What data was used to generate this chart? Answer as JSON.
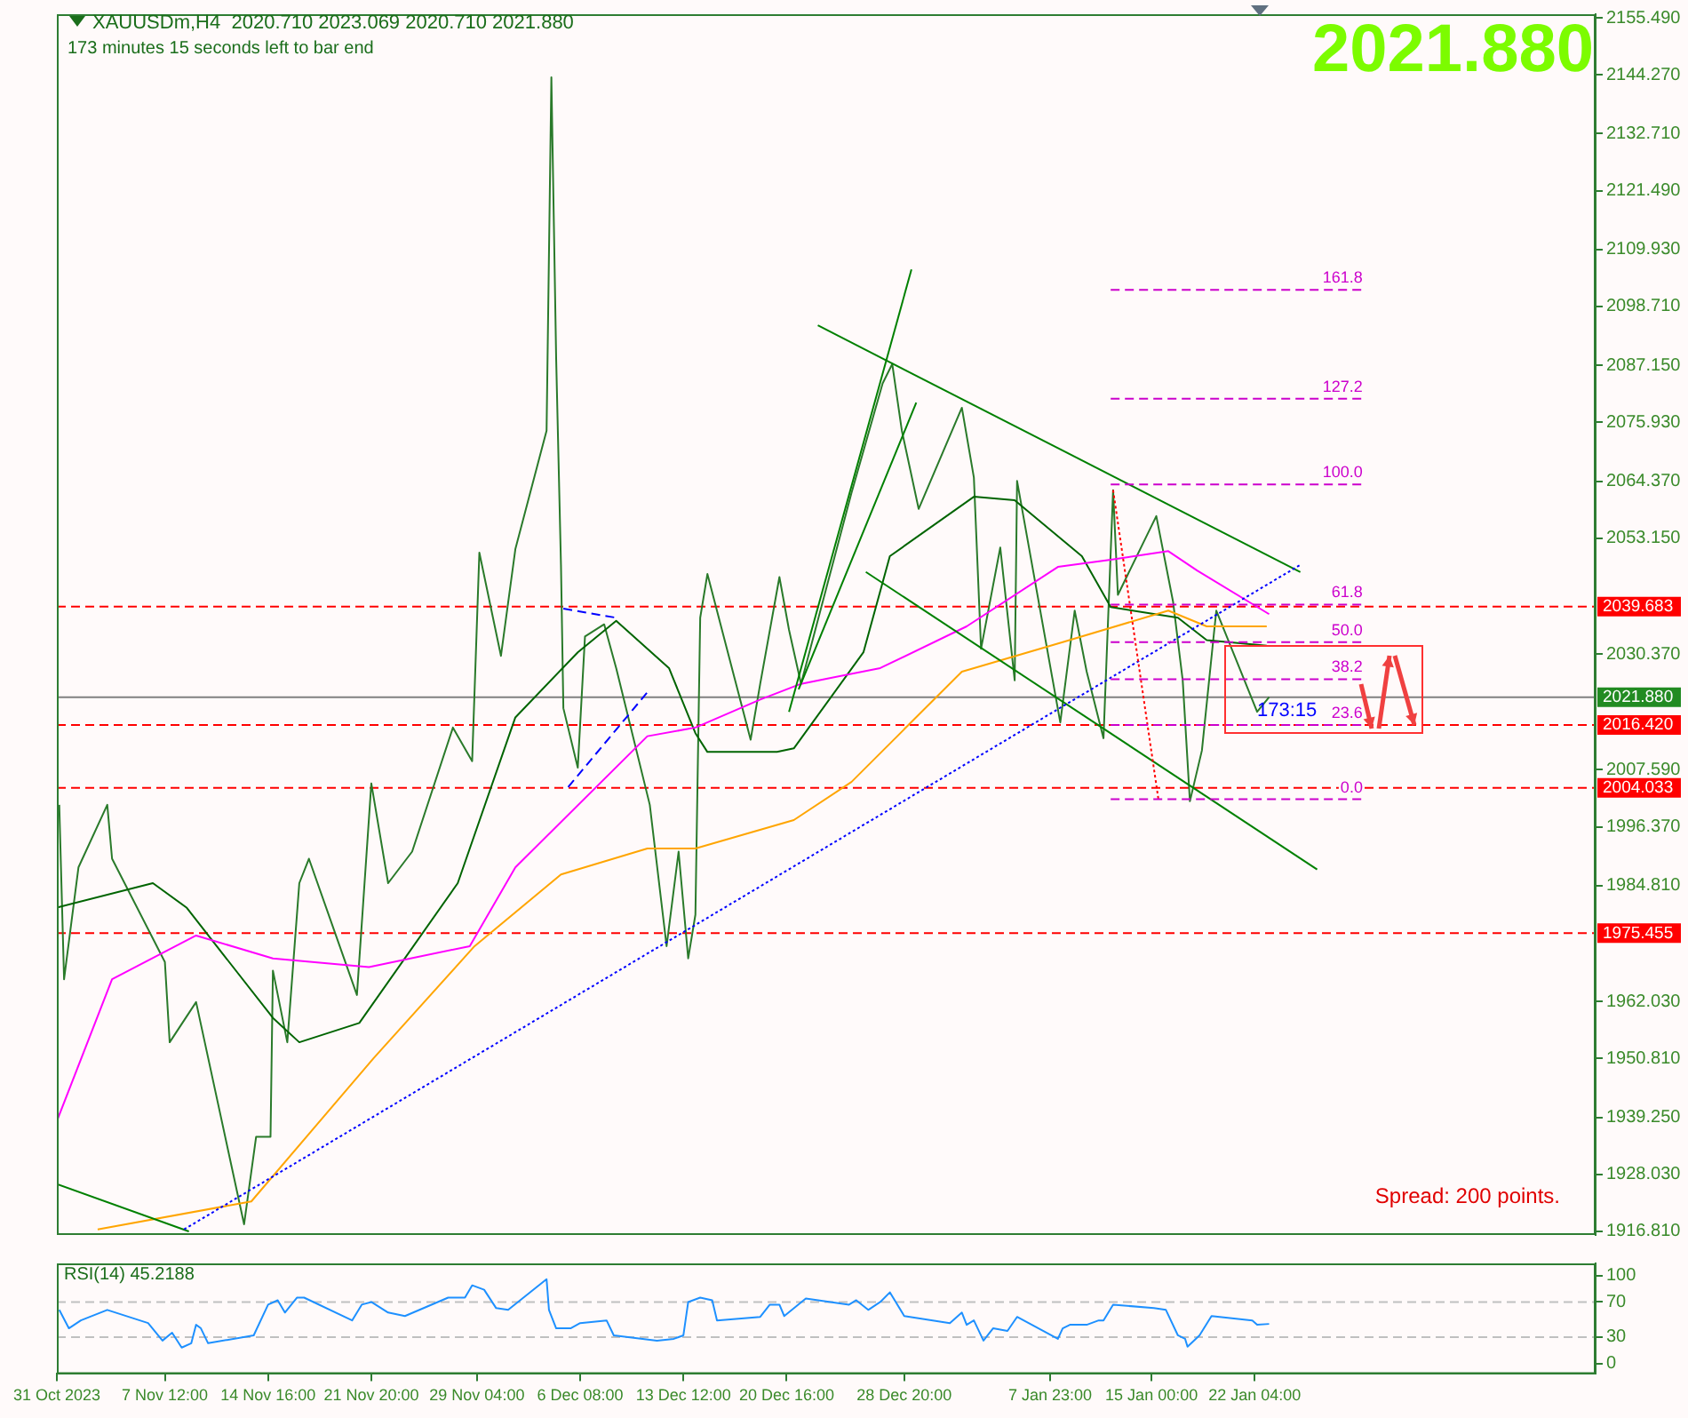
{
  "chart_data": [
    {
      "type": "line",
      "annotations": [
        "XAUUSDm,H4  2020.710 2023.069 2020.710 2021.880",
        "173 minutes 15 seconds left to bar end",
        "2021.880",
        "Spread: 200 points.",
        {
          "text": "173:15",
          "x": "2024-01-22T08:00",
          "y": 2021.9
        }
      ],
      "xlim": [
        "2023-10-31T00:00",
        "2024-02-14T20:00"
      ],
      "ylim": [
        1916.1,
        2156.2
      ],
      "yticks": [
        {
          "value": 2155.49,
          "label": "2155.490"
        },
        {
          "value": 2144.27,
          "label": "2144.270"
        },
        {
          "value": 2132.71,
          "label": "2132.710"
        },
        {
          "value": 2121.49,
          "label": "2121.490"
        },
        {
          "value": 2109.93,
          "label": "2109.930"
        },
        {
          "value": 2098.71,
          "label": "2098.710"
        },
        {
          "value": 2087.15,
          "label": "2087.150"
        },
        {
          "value": 2075.93,
          "label": "2075.930"
        },
        {
          "value": 2064.37,
          "label": "2064.370"
        },
        {
          "value": 2053.15,
          "label": "2053.150"
        },
        {
          "value": 2030.37,
          "label": "2030.370"
        },
        {
          "value": 2007.59,
          "label": "2007.590"
        },
        {
          "value": 1996.37,
          "label": "1996.370"
        },
        {
          "value": 1984.81,
          "label": "1984.810"
        },
        {
          "value": 1962.03,
          "label": "1962.030"
        },
        {
          "value": 1950.81,
          "label": "1950.810"
        },
        {
          "value": 1939.25,
          "label": "1939.250"
        },
        {
          "value": 1928.03,
          "label": "1928.030"
        },
        {
          "value": 1916.81,
          "label": "1916.810"
        }
      ],
      "tick_labels": "y",
      "grid": false,
      "legend": false,
      "marker": "none",
      "ref_lines": [
        {
          "axis": "y",
          "value": 2039.683,
          "label": "2039.683",
          "color": "#ff0000",
          "line_style": "dashed"
        },
        {
          "axis": "y",
          "value": 2021.88,
          "label": "2021.880",
          "color": "#808080",
          "line_style": "solid"
        },
        {
          "axis": "y",
          "value": 2016.42,
          "label": "2016.420",
          "color": "#ff0000",
          "line_style": "dashed"
        },
        {
          "axis": "y",
          "value": 2004.033,
          "label": "2004.033",
          "color": "#ff0000",
          "line_style": "dashed"
        },
        {
          "axis": "y",
          "value": 1975.455,
          "label": "1975.455",
          "color": "#ff0000",
          "line_style": "dashed"
        }
      ],
      "series": [
        {
          "color": "#2a7a2a",
          "x": [
            "2023-10-31T04:00",
            "2023-10-31T12:00",
            "2023-11-01T12:00",
            "2023-11-03T12:00",
            "2023-11-03T20:00",
            "2023-11-07T12:00",
            "2023-11-07T20:00",
            "2023-11-09T16:00",
            "2023-11-13T00:00",
            "2023-11-13T20:00",
            "2023-11-14T20:00",
            "2023-11-15T00:00",
            "2023-11-16T00:00",
            "2023-11-16T20:00",
            "2023-11-17T12:00",
            "2023-11-20T20:00",
            "2023-11-21T20:00",
            "2023-11-23T00:00",
            "2023-11-24T16:00",
            "2023-11-27T12:00",
            "2023-11-28T20:00",
            "2023-11-29T08:00",
            "2023-11-30T20:00",
            "2023-12-01T20:00",
            "2023-12-04T00:00",
            "2023-12-04T08:00",
            "2023-12-04T16:00",
            "2023-12-05T00:00",
            "2023-12-05T04:00",
            "2023-12-06T04:00",
            "2023-12-06T16:00",
            "2023-12-08T00:00",
            "2023-12-08T20:00",
            "2023-12-11T04:00",
            "2023-12-12T08:00",
            "2023-12-13T04:00",
            "2023-12-13T20:00",
            "2023-12-14T08:00",
            "2023-12-14T16:00",
            "2023-12-15T04:00",
            "2023-12-18T04:00",
            "2023-12-18T20:00",
            "2023-12-20T04:00",
            "2023-12-20T20:00",
            "2023-12-21T16:00",
            "2023-12-25T04:00",
            "2023-12-27T08:00",
            "2023-12-28T00:00",
            "2023-12-28T16:00",
            "2023-12-29T20:00",
            "2024-01-01T20:00",
            "2024-01-02T16:00",
            "2024-01-03T04:00",
            "2024-01-04T12:00",
            "2024-01-05T12:00",
            "2024-01-05T16:00",
            "2024-01-08T16:00",
            "2024-01-09T16:00",
            "2024-01-10T12:00",
            "2024-01-11T16:00",
            "2024-01-12T08:00",
            "2024-01-12T16:00",
            "2024-01-15T08:00",
            "2024-01-16T12:00",
            "2024-01-17T04:00",
            "2024-01-17T16:00",
            "2024-01-18T12:00",
            "2024-01-19T08:00",
            "2024-01-19T12:00",
            "2024-01-22T08:00",
            "2024-01-23T04:00"
          ],
          "values": [
            2000.7,
            1966.4,
            1988.4,
            2000.7,
            1990.1,
            1969.8,
            1954.0,
            1961.9,
            1918.2,
            1935.4,
            1935.4,
            1968.1,
            1954.0,
            1985.3,
            1990.1,
            1963.3,
            2004.9,
            1985.3,
            1991.5,
            2015.9,
            2009.3,
            2050.3,
            2030.0,
            2051.0,
            2074.3,
            2143.8,
            2088.4,
            2047.9,
            2019.7,
            2008.0,
            2033.8,
            2036.2,
            2027.6,
            2000.7,
            1972.9,
            1991.5,
            1970.5,
            1979.1,
            2037.5,
            2046.1,
            2013.5,
            2024.5,
            2045.5,
            2035.1,
            2024.5,
            2062.0,
            2083.6,
            2087.4,
            2074.3,
            2058.9,
            2078.8,
            2065.1,
            2031.4,
            2051.3,
            2025.2,
            2064.4,
            2016.9,
            2038.9,
            2026.9,
            2013.8,
            2062.6,
            2042.0,
            2057.5,
            2040.6,
            2025.2,
            2001.4,
            2011.4,
            2034.4,
            2038.9,
            2019.0,
            2021.9
          ]
        },
        {
          "color": "#006400",
          "x": [
            "2023-10-31T00:00",
            "2023-11-06T16:00",
            "2023-11-09T00:00",
            "2023-11-15T00:00",
            "2023-11-16T20:00",
            "2023-11-21T00:00",
            "2023-11-27T20:00",
            "2023-12-01T20:00",
            "2023-12-06T04:00",
            "2023-12-08T20:00",
            "2023-12-12T12:00",
            "2023-12-14T08:00",
            "2023-12-15T04:00",
            "2023-12-20T00:00",
            "2023-12-21T04:00",
            "2023-12-26T00:00",
            "2023-12-27T20:00",
            "2024-01-02T16:00",
            "2024-01-05T12:00",
            "2024-01-10T04:00",
            "2024-01-12T04:00",
            "2024-01-16T20:00",
            "2024-01-18T20:00",
            "2024-01-23T00:00"
          ],
          "values": [
            1980.5,
            1985.3,
            1980.5,
            1958.8,
            1954.0,
            1957.8,
            1985.3,
            2017.9,
            2030.7,
            2036.9,
            2027.6,
            2014.8,
            2011.1,
            2011.1,
            2011.8,
            2030.7,
            2049.6,
            2061.3,
            2060.6,
            2049.6,
            2039.6,
            2037.5,
            2033.1,
            2032.0
          ]
        },
        {
          "color": "#ff00ff",
          "x": [
            "2023-10-31T00:00",
            "2023-11-03T20:00",
            "2023-11-09T16:00",
            "2023-11-15T00:00",
            "2023-11-21T16:00",
            "2023-11-28T16:00",
            "2023-12-01T20:00",
            "2023-12-11T00:00",
            "2023-12-14T08:00",
            "2023-12-18T20:00",
            "2023-12-21T16:00",
            "2023-12-27T04:00",
            "2024-01-02T04:00",
            "2024-01-08T12:00",
            "2024-01-12T04:00",
            "2024-01-16T04:00",
            "2024-01-18T04:00",
            "2024-01-23T04:00"
          ],
          "values": [
            1938.5,
            1966.4,
            1975.0,
            1970.5,
            1968.8,
            1972.9,
            1988.4,
            2014.2,
            2015.9,
            2021.4,
            2024.5,
            2027.6,
            2035.8,
            2047.5,
            2048.9,
            2050.6,
            2046.8,
            2038.2
          ]
        },
        {
          "color": "#ffa500",
          "x": [
            "2023-11-02T20:00",
            "2023-11-13T12:00",
            "2023-11-22T00:00",
            "2023-11-29T00:00",
            "2023-12-05T00:00",
            "2023-12-11T00:00",
            "2023-12-14T08:00",
            "2023-12-21T04:00",
            "2023-12-25T04:00",
            "2024-01-01T20:00",
            "2024-01-08T20:00",
            "2024-01-16T04:00",
            "2024-01-18T20:00",
            "2024-01-23T00:00"
          ],
          "values": [
            1917.2,
            1922.7,
            1950.9,
            1972.9,
            1987.0,
            1992.1,
            1992.1,
            1997.7,
            2005.2,
            2026.9,
            2032.7,
            2038.9,
            2035.8,
            2035.8
          ]
        },
        {
          "color": "#008000",
          "x": [
            "2023-12-22T20:00",
            "2024-01-25T08:00"
          ],
          "values": [
            2095.0,
            2046.5
          ]
        },
        {
          "color": "#008000",
          "x": [
            "2023-12-26T04:00",
            "2024-01-26T12:00"
          ],
          "values": [
            2046.5,
            1988.0
          ]
        },
        {
          "color": "#008000",
          "x": [
            "2023-12-20T20:00",
            "2023-12-29T08:00"
          ],
          "values": [
            2019.0,
            2106.0
          ]
        },
        {
          "color": "#008000",
          "x": [
            "2023-12-21T12:00",
            "2023-12-29T16:00"
          ],
          "values": [
            2023.4,
            2079.8
          ]
        },
        {
          "color": "#008000",
          "x": [
            "2023-10-31T00:00",
            "2023-11-09T04:00"
          ],
          "values": [
            1926.1,
            1916.8
          ]
        },
        {
          "color": "#0000ff",
          "line_style": "dotted",
          "x": [
            "2023-11-08T20:00",
            "2024-01-25T08:00"
          ],
          "values": [
            1917.2,
            2047.9
          ]
        },
        {
          "color": "#0000ff",
          "line_style": "dashed",
          "x": [
            "2023-12-05T12:00",
            "2023-12-11T04:00"
          ],
          "values": [
            2004.2,
            2023.4
          ]
        },
        {
          "color": "#0000ff",
          "line_style": "dashed",
          "x": [
            "2023-12-05T04:00",
            "2023-12-08T20:00"
          ],
          "values": [
            2039.3,
            2037.5
          ]
        },
        {
          "color": "#ff0000",
          "line_style": "dotted",
          "x": [
            "2024-01-12T08:00",
            "2024-01-15T12:00"
          ],
          "values": [
            2062.6,
            2001.4
          ]
        },
        {
          "name": "161.8",
          "color": "#cc00cc",
          "line_style": "dashed",
          "x": [
            "2024-01-12T04:00",
            "2024-01-29T16:00"
          ],
          "values": [
            2102.0,
            2102.0
          ]
        },
        {
          "name": "127.2",
          "color": "#cc00cc",
          "line_style": "dashed",
          "x": [
            "2024-01-12T04:00",
            "2024-01-29T16:00"
          ],
          "values": [
            2080.6,
            2080.6
          ]
        },
        {
          "name": "100.0",
          "color": "#cc00cc",
          "line_style": "dashed",
          "x": [
            "2024-01-12T04:00",
            "2024-01-29T16:00"
          ],
          "values": [
            2063.7,
            2063.7
          ]
        },
        {
          "name": "61.8",
          "color": "#cc00cc",
          "line_style": "dashed",
          "x": [
            "2024-01-12T04:00",
            "2024-01-29T16:00"
          ],
          "values": [
            2040.1,
            2040.1
          ]
        },
        {
          "name": "50.0",
          "color": "#cc00cc",
          "line_style": "dashed",
          "x": [
            "2024-01-12T04:00",
            "2024-01-29T16:00"
          ],
          "values": [
            2032.7,
            2032.7
          ]
        },
        {
          "name": "38.2",
          "color": "#cc00cc",
          "line_style": "dashed",
          "x": [
            "2024-01-12T04:00",
            "2024-01-29T16:00"
          ],
          "values": [
            2025.4,
            2025.4
          ]
        },
        {
          "name": "23.6",
          "color": "#cc00cc",
          "line_style": "dashed",
          "x": [
            "2024-01-12T04:00",
            "2024-01-29T16:00"
          ],
          "values": [
            2016.4,
            2016.4
          ]
        },
        {
          "name": "0.0",
          "color": "#cc00cc",
          "line_style": "dashed",
          "x": [
            "2024-01-12T04:00",
            "2024-01-29T16:00"
          ],
          "values": [
            2001.8,
            2001.8
          ]
        }
      ]
    },
    {
      "type": "line",
      "annotations": [
        "RSI(14) 45.2188"
      ],
      "xlim": [
        "2023-10-31T00:00",
        "2024-02-14T20:00"
      ],
      "xticks": [
        {
          "value": "2023-10-31T00:00",
          "label": "31 Oct 2023"
        },
        {
          "value": "2023-11-07T12:00",
          "label": "7 Nov 12:00"
        },
        {
          "value": "2023-11-14T16:00",
          "label": "14 Nov 16:00"
        },
        {
          "value": "2023-11-21T20:00",
          "label": "21 Nov 20:00"
        },
        {
          "value": "2023-11-29T04:00",
          "label": "29 Nov 04:00"
        },
        {
          "value": "2023-12-06T08:00",
          "label": "6 Dec 08:00"
        },
        {
          "value": "2023-12-13T12:00",
          "label": "13 Dec 12:00"
        },
        {
          "value": "2023-12-20T16:00",
          "label": "20 Dec 16:00"
        },
        {
          "value": "2023-12-28T20:00",
          "label": "28 Dec 20:00"
        },
        {
          "value": "2024-01-07T23:00",
          "label": "7 Jan 23:00"
        },
        {
          "value": "2024-01-15T00:00",
          "label": "15 Jan 00:00"
        },
        {
          "value": "2024-01-22T04:00",
          "label": "22 Jan 04:00"
        }
      ],
      "ylim": [
        -12,
        114
      ],
      "yticks": [
        100,
        70,
        30,
        0
      ],
      "grid": false,
      "legend": false,
      "marker": "none",
      "ref_lines": [
        {
          "axis": "y",
          "value": 70,
          "color": "#c0c0c0",
          "line_style": "dashed"
        },
        {
          "axis": "y",
          "value": 30,
          "color": "#c0c0c0",
          "line_style": "dashed"
        }
      ],
      "series": [
        {
          "color": "#1e90ff",
          "x": [
            "2023-10-31T04:00",
            "2023-10-31T20:00",
            "2023-11-01T16:00",
            "2023-11-03T12:00",
            "2023-11-06T08:00",
            "2023-11-07T08:00",
            "2023-11-08T00:00",
            "2023-11-08T16:00",
            "2023-11-09T08:00",
            "2023-11-09T16:00",
            "2023-11-10T00:00",
            "2023-11-10T12:00",
            "2023-11-13T16:00",
            "2023-11-14T16:00",
            "2023-11-15T08:00",
            "2023-11-15T20:00",
            "2023-11-16T16:00",
            "2023-11-17T04:00",
            "2023-11-20T12:00",
            "2023-11-21T04:00",
            "2023-11-21T20:00",
            "2023-11-23T00:00",
            "2023-11-24T04:00",
            "2023-11-27T04:00",
            "2023-11-28T08:00",
            "2023-11-28T20:00",
            "2023-11-29T16:00",
            "2023-11-30T12:00",
            "2023-12-01T08:00",
            "2023-12-04T00:00",
            "2023-12-04T04:00",
            "2023-12-04T16:00",
            "2023-12-05T16:00",
            "2023-12-06T08:00",
            "2023-12-08T04:00",
            "2023-12-08T16:00",
            "2023-12-11T16:00",
            "2023-12-12T20:00",
            "2023-12-13T12:00",
            "2023-12-13T20:00",
            "2023-12-14T16:00",
            "2023-12-15T12:00",
            "2023-12-15T20:00",
            "2023-12-18T20:00",
            "2023-12-19T12:00",
            "2023-12-20T04:00",
            "2023-12-20T12:00",
            "2023-12-22T00:00",
            "2023-12-25T00:00",
            "2023-12-25T12:00",
            "2023-12-26T08:00",
            "2023-12-27T04:00",
            "2023-12-27T20:00",
            "2023-12-28T20:00",
            "2024-01-01T00:00",
            "2024-01-01T20:00",
            "2024-01-02T04:00",
            "2024-01-02T16:00",
            "2024-01-03T08:00",
            "2024-01-04T00:00",
            "2024-01-05T00:00",
            "2024-01-05T16:00",
            "2024-01-08T12:00",
            "2024-01-08T20:00",
            "2024-01-09T08:00",
            "2024-01-10T12:00",
            "2024-01-11T08:00",
            "2024-01-11T16:00",
            "2024-01-12T08:00",
            "2024-01-15T04:00",
            "2024-01-16T00:00",
            "2024-01-16T20:00",
            "2024-01-17T08:00",
            "2024-01-17T12:00",
            "2024-01-18T08:00",
            "2024-01-19T04:00",
            "2024-01-22T00:00",
            "2024-01-22T08:00",
            "2024-01-23T04:00"
          ],
          "values": [
            61,
            40,
            49,
            61,
            46,
            26,
            35,
            18,
            23,
            44,
            40,
            23,
            32,
            67,
            72,
            58,
            75,
            75,
            49,
            67,
            70,
            58,
            54,
            75,
            75,
            89,
            84,
            63,
            61,
            96,
            61,
            40,
            40,
            46,
            49,
            32,
            26,
            28,
            32,
            70,
            75,
            72,
            49,
            53,
            67,
            67,
            54,
            74,
            67,
            72,
            61,
            70,
            81,
            54,
            46,
            58,
            44,
            49,
            26,
            40,
            37,
            53,
            28,
            40,
            44,
            44,
            49,
            49,
            67,
            63,
            61,
            32,
            28,
            19,
            32,
            54,
            49,
            44,
            45
          ]
        }
      ]
    }
  ]
}
